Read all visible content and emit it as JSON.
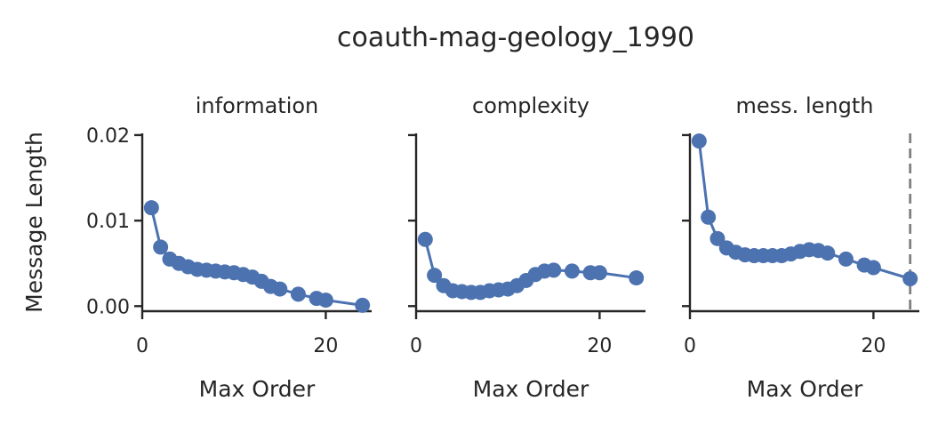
{
  "figure": {
    "title": "coauth-mag-geology_1990",
    "ylabel": "Message Length",
    "line_color": "#4c72b0",
    "axis_color": "#262626",
    "marker_line_color": "#808080"
  },
  "chart_data": [
    {
      "type": "line",
      "title": "information",
      "xlabel": "Max Order",
      "ylabel": "Message Length",
      "xlim": [
        0,
        25
      ],
      "ylim": [
        -0.0008,
        0.0202
      ],
      "xticks": [
        0,
        20
      ],
      "xtick_labels": [
        "0",
        "20"
      ],
      "yticks": [
        0.0,
        0.01,
        0.02
      ],
      "ytick_labels": [
        "0.00",
        "0.01",
        "0.02"
      ],
      "grid": false,
      "series": [
        {
          "x": [
            1,
            2,
            3,
            4,
            5,
            6,
            7,
            8,
            9,
            10,
            11,
            12,
            13,
            14,
            15,
            17,
            19,
            20,
            24
          ],
          "y": [
            0.0115,
            0.0069,
            0.0055,
            0.005,
            0.0046,
            0.0043,
            0.0042,
            0.0041,
            0.004,
            0.0039,
            0.0037,
            0.0034,
            0.0029,
            0.0023,
            0.002,
            0.0014,
            0.0009,
            0.0007,
            0.0001
          ]
        }
      ]
    },
    {
      "type": "line",
      "title": "complexity",
      "xlabel": "Max Order",
      "xlim": [
        0,
        25
      ],
      "ylim": [
        -0.0008,
        0.0202
      ],
      "xticks": [
        0,
        20
      ],
      "xtick_labels": [
        "0",
        "20"
      ],
      "yticks": [
        0.0,
        0.01,
        0.02
      ],
      "grid": false,
      "series": [
        {
          "x": [
            1,
            2,
            3,
            4,
            5,
            6,
            7,
            8,
            9,
            10,
            11,
            12,
            13,
            14,
            15,
            17,
            19,
            20,
            24
          ],
          "y": [
            0.0078,
            0.0036,
            0.0024,
            0.0018,
            0.0017,
            0.0016,
            0.0016,
            0.0018,
            0.0019,
            0.002,
            0.0024,
            0.003,
            0.0037,
            0.0041,
            0.0042,
            0.0041,
            0.0039,
            0.0039,
            0.0033
          ]
        }
      ]
    },
    {
      "type": "line",
      "title": "mess. length",
      "xlabel": "Max Order",
      "xlim": [
        0,
        25
      ],
      "ylim": [
        -0.0008,
        0.0202
      ],
      "xticks": [
        0,
        20
      ],
      "xtick_labels": [
        "0",
        "20"
      ],
      "yticks": [
        0.0,
        0.01,
        0.02
      ],
      "grid": false,
      "vline_x": 24,
      "series": [
        {
          "x": [
            1,
            2,
            3,
            4,
            5,
            6,
            7,
            8,
            9,
            10,
            11,
            12,
            13,
            14,
            15,
            17,
            19,
            20,
            24
          ],
          "y": [
            0.0193,
            0.0104,
            0.0079,
            0.0068,
            0.0063,
            0.006,
            0.0059,
            0.0059,
            0.0059,
            0.0059,
            0.0061,
            0.0064,
            0.0066,
            0.0065,
            0.0062,
            0.0055,
            0.0048,
            0.0045,
            0.0032
          ]
        }
      ]
    }
  ]
}
